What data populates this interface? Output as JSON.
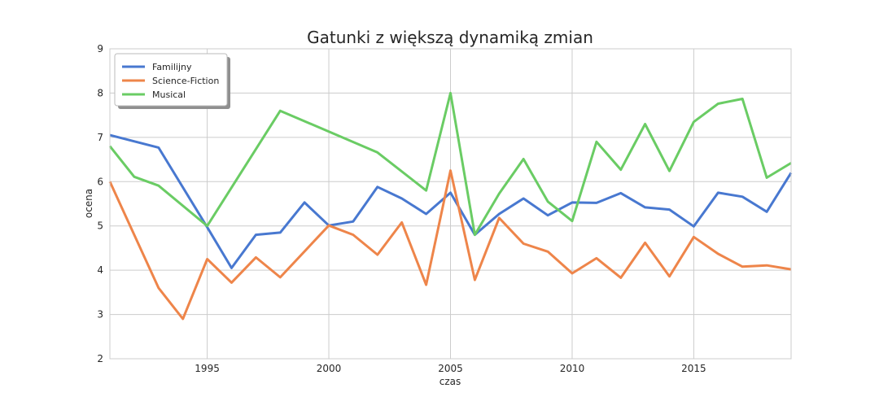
{
  "chart_data": {
    "type": "line",
    "title": "Gatunki z większą dynamiką zmian",
    "xlabel": "czas",
    "ylabel": "ocena",
    "xlim": [
      1991,
      2019
    ],
    "ylim": [
      2,
      9
    ],
    "xticks": [
      1995,
      2000,
      2005,
      2010,
      2015
    ],
    "yticks": [
      2,
      3,
      4,
      5,
      6,
      7,
      8,
      9
    ],
    "grid": true,
    "legend_position": "top-left",
    "series": [
      {
        "name": "Familijny",
        "color": "#4878d0",
        "points": [
          [
            1991,
            7.05
          ],
          [
            1993,
            6.77
          ],
          [
            1995,
            4.97
          ],
          [
            1996,
            4.05
          ],
          [
            1997,
            4.8
          ],
          [
            1998,
            4.85
          ],
          [
            1999,
            5.53
          ],
          [
            2000,
            5.01
          ],
          [
            2001,
            5.1
          ],
          [
            2002,
            5.88
          ],
          [
            2003,
            5.62
          ],
          [
            2004,
            5.27
          ],
          [
            2005,
            5.75
          ],
          [
            2006,
            4.8
          ],
          [
            2007,
            5.27
          ],
          [
            2008,
            5.62
          ],
          [
            2009,
            5.24
          ],
          [
            2010,
            5.53
          ],
          [
            2011,
            5.52
          ],
          [
            2012,
            5.74
          ],
          [
            2013,
            5.42
          ],
          [
            2014,
            5.37
          ],
          [
            2015,
            4.99
          ],
          [
            2016,
            5.75
          ],
          [
            2017,
            5.66
          ],
          [
            2018,
            5.32
          ],
          [
            2019,
            6.2
          ]
        ]
      },
      {
        "name": "Science-Fiction",
        "color": "#ee854a",
        "points": [
          [
            1991,
            6.0
          ],
          [
            1993,
            3.6
          ],
          [
            1994,
            2.9
          ],
          [
            1995,
            4.25
          ],
          [
            1996,
            3.72
          ],
          [
            1997,
            4.29
          ],
          [
            1998,
            3.84
          ],
          [
            2000,
            5.01
          ],
          [
            2001,
            4.8
          ],
          [
            2002,
            4.35
          ],
          [
            2003,
            5.08
          ],
          [
            2004,
            3.67
          ],
          [
            2005,
            6.25
          ],
          [
            2006,
            3.78
          ],
          [
            2007,
            5.18
          ],
          [
            2008,
            4.6
          ],
          [
            2009,
            4.42
          ],
          [
            2010,
            3.93
          ],
          [
            2011,
            4.27
          ],
          [
            2012,
            3.83
          ],
          [
            2013,
            4.62
          ],
          [
            2014,
            3.86
          ],
          [
            2015,
            4.75
          ],
          [
            2016,
            4.37
          ],
          [
            2017,
            4.08
          ],
          [
            2018,
            4.11
          ],
          [
            2019,
            4.02
          ]
        ]
      },
      {
        "name": "Musical",
        "color": "#6acc64",
        "points": [
          [
            1991,
            6.8
          ],
          [
            1992,
            6.11
          ],
          [
            1993,
            5.91
          ],
          [
            1995,
            5.0
          ],
          [
            1998,
            7.6
          ],
          [
            2002,
            6.66
          ],
          [
            2004,
            5.8
          ],
          [
            2005,
            8.0
          ],
          [
            2006,
            4.8
          ],
          [
            2007,
            5.73
          ],
          [
            2008,
            6.51
          ],
          [
            2009,
            5.55
          ],
          [
            2010,
            5.11
          ],
          [
            2011,
            6.9
          ],
          [
            2012,
            6.27
          ],
          [
            2013,
            7.3
          ],
          [
            2014,
            6.24
          ],
          [
            2015,
            7.35
          ],
          [
            2016,
            7.76
          ],
          [
            2017,
            7.87
          ],
          [
            2018,
            6.09
          ],
          [
            2019,
            6.42
          ]
        ]
      }
    ]
  }
}
